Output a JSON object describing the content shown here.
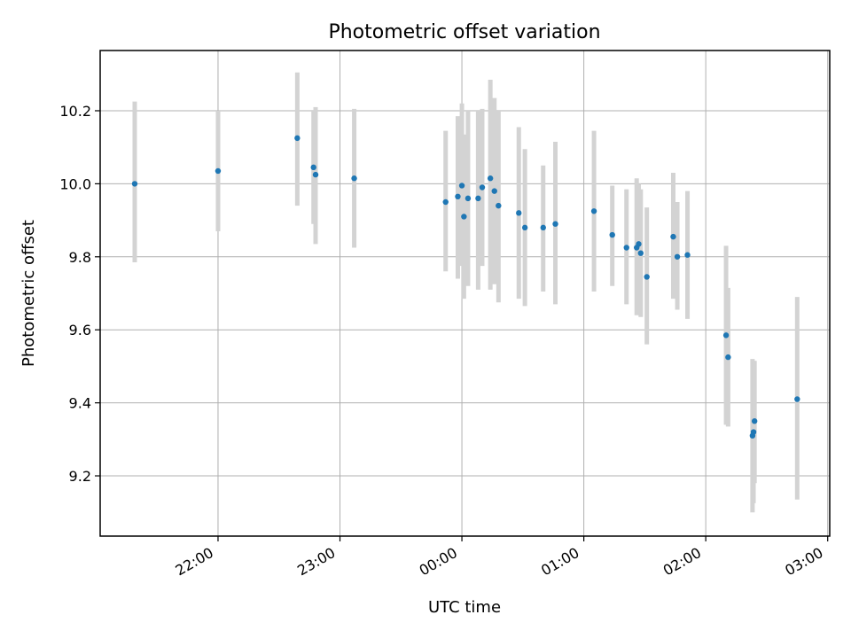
{
  "chart_data": {
    "type": "scatter",
    "title": "Photometric offset variation",
    "xlabel": "UTC time",
    "ylabel": "Photometric offset",
    "x_unit": "minutes relative to 00:00 UTC",
    "xlim": [
      -178,
      181
    ],
    "ylim": [
      9.035,
      10.365
    ],
    "x_ticks": [
      {
        "value": -120,
        "label": "22:00"
      },
      {
        "value": -60,
        "label": "23:00"
      },
      {
        "value": 0,
        "label": "00:00"
      },
      {
        "value": 60,
        "label": "01:00"
      },
      {
        "value": 120,
        "label": "02:00"
      },
      {
        "value": 180,
        "label": "03:00"
      }
    ],
    "y_ticks": [
      {
        "value": 9.2,
        "label": "9.2"
      },
      {
        "value": 9.4,
        "label": "9.4"
      },
      {
        "value": 9.6,
        "label": "9.6"
      },
      {
        "value": 9.8,
        "label": "9.8"
      },
      {
        "value": 10.0,
        "label": "10.0"
      },
      {
        "value": 10.2,
        "label": "10.2"
      }
    ],
    "grid": true,
    "colors": {
      "point": "#1f77b4",
      "errorbar": "#d3d3d3",
      "grid": "#b0b0b0",
      "axes": "#000000"
    },
    "series": [
      {
        "points": [
          {
            "x": -161,
            "y": 10.0,
            "ylow": 9.785,
            "yhigh": 10.225
          },
          {
            "x": -120,
            "y": 10.035,
            "ylow": 9.87,
            "yhigh": 10.2
          },
          {
            "x": -81,
            "y": 10.125,
            "ylow": 9.94,
            "yhigh": 10.305
          },
          {
            "x": -73,
            "y": 10.045,
            "ylow": 9.89,
            "yhigh": 10.2
          },
          {
            "x": -72,
            "y": 10.025,
            "ylow": 9.835,
            "yhigh": 10.21
          },
          {
            "x": -53,
            "y": 10.015,
            "ylow": 9.825,
            "yhigh": 10.205
          },
          {
            "x": -8,
            "y": 9.95,
            "ylow": 9.76,
            "yhigh": 10.145
          },
          {
            "x": -2,
            "y": 9.965,
            "ylow": 9.74,
            "yhigh": 10.185
          },
          {
            "x": 0,
            "y": 9.995,
            "ylow": 9.775,
            "yhigh": 10.22
          },
          {
            "x": 1,
            "y": 9.91,
            "ylow": 9.685,
            "yhigh": 10.135
          },
          {
            "x": 3,
            "y": 9.96,
            "ylow": 9.72,
            "yhigh": 10.2
          },
          {
            "x": 8,
            "y": 9.96,
            "ylow": 9.71,
            "yhigh": 10.2
          },
          {
            "x": 10,
            "y": 9.99,
            "ylow": 9.775,
            "yhigh": 10.205
          },
          {
            "x": 14,
            "y": 10.015,
            "ylow": 9.71,
            "yhigh": 10.285
          },
          {
            "x": 16,
            "y": 9.98,
            "ylow": 9.725,
            "yhigh": 10.235
          },
          {
            "x": 18,
            "y": 9.94,
            "ylow": 9.675,
            "yhigh": 10.2
          },
          {
            "x": 28,
            "y": 9.92,
            "ylow": 9.685,
            "yhigh": 10.155
          },
          {
            "x": 31,
            "y": 9.88,
            "ylow": 9.665,
            "yhigh": 10.095
          },
          {
            "x": 40,
            "y": 9.88,
            "ylow": 9.705,
            "yhigh": 10.05
          },
          {
            "x": 46,
            "y": 9.89,
            "ylow": 9.67,
            "yhigh": 10.115
          },
          {
            "x": 65,
            "y": 9.925,
            "ylow": 9.705,
            "yhigh": 10.145
          },
          {
            "x": 74,
            "y": 9.86,
            "ylow": 9.72,
            "yhigh": 9.995
          },
          {
            "x": 81,
            "y": 9.825,
            "ylow": 9.67,
            "yhigh": 9.985
          },
          {
            "x": 86,
            "y": 9.825,
            "ylow": 9.64,
            "yhigh": 10.015
          },
          {
            "x": 87,
            "y": 9.835,
            "ylow": 9.645,
            "yhigh": 10.0
          },
          {
            "x": 88,
            "y": 9.81,
            "ylow": 9.635,
            "yhigh": 9.985
          },
          {
            "x": 91,
            "y": 9.745,
            "ylow": 9.56,
            "yhigh": 9.935
          },
          {
            "x": 104,
            "y": 9.855,
            "ylow": 9.685,
            "yhigh": 10.03
          },
          {
            "x": 106,
            "y": 9.8,
            "ylow": 9.655,
            "yhigh": 9.95
          },
          {
            "x": 111,
            "y": 9.805,
            "ylow": 9.63,
            "yhigh": 9.98
          },
          {
            "x": 130,
            "y": 9.585,
            "ylow": 9.34,
            "yhigh": 9.83
          },
          {
            "x": 131,
            "y": 9.525,
            "ylow": 9.335,
            "yhigh": 9.715
          },
          {
            "x": 143,
            "y": 9.31,
            "ylow": 9.1,
            "yhigh": 9.52
          },
          {
            "x": 143.5,
            "y": 9.32,
            "ylow": 9.125,
            "yhigh": 9.515
          },
          {
            "x": 144,
            "y": 9.35,
            "ylow": 9.18,
            "yhigh": 9.515
          },
          {
            "x": 165,
            "y": 9.41,
            "ylow": 9.135,
            "yhigh": 9.69
          }
        ]
      }
    ]
  }
}
